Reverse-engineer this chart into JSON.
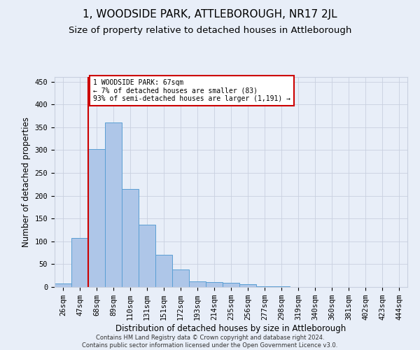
{
  "title": "1, WOODSIDE PARK, ATTLEBOROUGH, NR17 2JL",
  "subtitle": "Size of property relative to detached houses in Attleborough",
  "xlabel": "Distribution of detached houses by size in Attleborough",
  "ylabel": "Number of detached properties",
  "footnote": "Contains HM Land Registry data © Crown copyright and database right 2024.\nContains public sector information licensed under the Open Government Licence v3.0.",
  "bar_labels": [
    "26sqm",
    "47sqm",
    "68sqm",
    "89sqm",
    "110sqm",
    "131sqm",
    "151sqm",
    "172sqm",
    "193sqm",
    "214sqm",
    "235sqm",
    "256sqm",
    "277sqm",
    "298sqm",
    "319sqm",
    "340sqm",
    "360sqm",
    "381sqm",
    "402sqm",
    "423sqm",
    "444sqm"
  ],
  "bar_values": [
    8,
    108,
    302,
    360,
    214,
    136,
    70,
    38,
    12,
    10,
    9,
    6,
    2,
    1,
    0,
    0,
    0,
    0,
    0,
    0,
    0
  ],
  "bar_color": "#aec6e8",
  "bar_edge_color": "#5a9fd4",
  "subject_line_color": "#cc0000",
  "annotation_text": "1 WOODSIDE PARK: 67sqm\n← 7% of detached houses are smaller (83)\n93% of semi-detached houses are larger (1,191) →",
  "annotation_box_color": "#ffffff",
  "annotation_box_edge": "#cc0000",
  "ylim": [
    0,
    460
  ],
  "yticks": [
    0,
    50,
    100,
    150,
    200,
    250,
    300,
    350,
    400,
    450
  ],
  "grid_color": "#c8d0df",
  "bg_color": "#e8eef8",
  "title_fontsize": 11,
  "subtitle_fontsize": 9.5,
  "axis_label_fontsize": 8.5,
  "tick_fontsize": 7.5,
  "footnote_fontsize": 6,
  "annotation_fontsize": 7
}
